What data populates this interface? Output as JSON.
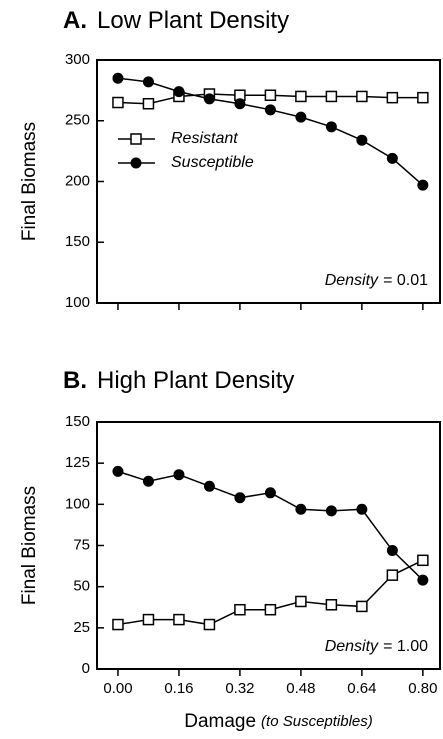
{
  "chart_data": [
    {
      "type": "line",
      "panel": "A.",
      "title": "Low Plant Density",
      "ylabel": "Final Biomass",
      "x": [
        0,
        0.08,
        0.16,
        0.24,
        0.32,
        0.4,
        0.48,
        0.56,
        0.64,
        0.72,
        0.8
      ],
      "series": [
        {
          "name": "Resistant",
          "color": "#000000",
          "marker": "open-square",
          "values": [
            265,
            264,
            270,
            272,
            271,
            271,
            270,
            270,
            270,
            269,
            269
          ]
        },
        {
          "name": "Susceptible",
          "color": "#000000",
          "marker": "filled-circle",
          "values": [
            285,
            282,
            274,
            268,
            264,
            259,
            253,
            245,
            234,
            219,
            197
          ]
        }
      ],
      "xlim": [
        -0.055,
        0.845
      ],
      "xticks": [
        0,
        0.16,
        0.32,
        0.48,
        0.64,
        0.8
      ],
      "ylim": [
        100,
        300
      ],
      "yticks": [
        100,
        150,
        200,
        250,
        300
      ],
      "legend": "upper left",
      "annotation": {
        "label": "Density",
        "text": "= 0.01"
      }
    },
    {
      "type": "line",
      "panel": "B.",
      "title": "High Plant Density",
      "ylabel": "Final Biomass",
      "xlabel": "Damage",
      "xlabel_note": "(to Susceptibles)",
      "x": [
        0,
        0.08,
        0.16,
        0.24,
        0.32,
        0.4,
        0.48,
        0.56,
        0.64,
        0.72,
        0.8
      ],
      "series": [
        {
          "color": "#000000",
          "marker": "open-square",
          "values": [
            27,
            30,
            30,
            27,
            36,
            36,
            41,
            39,
            38,
            57,
            66
          ]
        },
        {
          "color": "#000000",
          "marker": "filled-circle",
          "values": [
            120,
            114,
            118,
            111,
            104,
            107,
            97,
            96,
            97,
            72,
            54
          ]
        }
      ],
      "xlim": [
        -0.055,
        0.845
      ],
      "xticks": [
        {
          "value": 0,
          "label": "0.00"
        },
        {
          "value": 0.16,
          "label": "0.16"
        },
        {
          "value": 0.32,
          "label": "0.32"
        },
        {
          "value": 0.48,
          "label": "0.48"
        },
        {
          "value": 0.64,
          "label": "0.64"
        },
        {
          "value": 0.8,
          "label": "0.80"
        }
      ],
      "ylim": [
        0,
        150
      ],
      "yticks": [
        0,
        25,
        50,
        75,
        100,
        125,
        150
      ],
      "annotation": {
        "label": "Density",
        "text": "= 1.00"
      }
    }
  ]
}
